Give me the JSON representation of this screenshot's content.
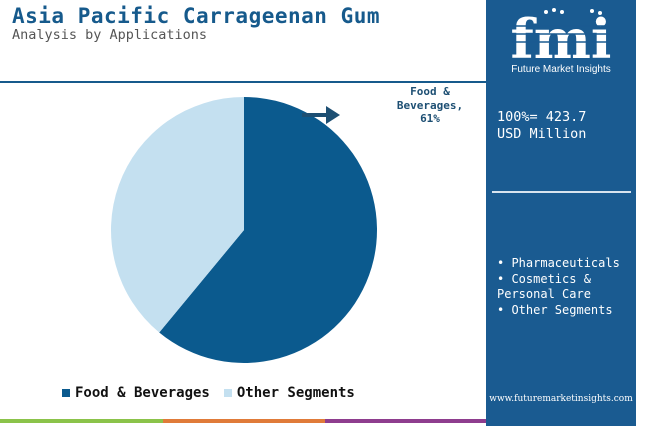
{
  "header": {
    "title": "Asia Pacific Carrageenan Gum",
    "subtitle": "Analysis by Applications"
  },
  "chart_data": {
    "type": "pie",
    "categories": [
      "Food & Beverages",
      "Other Segments"
    ],
    "values": [
      61,
      39
    ],
    "colors": [
      "#0b5a8e",
      "#c4e0f0"
    ],
    "callout": {
      "category": "Food & Beverages",
      "text": "Food & Beverages, 61%",
      "line1": "Food &",
      "line2": "Beverages,",
      "line3": "61%"
    },
    "legend": {
      "placement": "bottom",
      "items": [
        "Food & Beverages",
        "Other Segments"
      ]
    }
  },
  "panel": {
    "logo_letters": "fmi",
    "logo_name": "Future Market Insights",
    "total_line1": "100%= 423.7",
    "total_line2": "USD Million",
    "segments": [
      "Pharmaceuticals",
      "Cosmetics & Personal Care",
      "Other Segments"
    ],
    "website": "www.futuremarketinsights.com"
  },
  "colors": {
    "title": "#165a8c",
    "panel": "#1a5b91",
    "bottom_bar": [
      "#8bc34a",
      "#e07b39",
      "#8e3d8e"
    ]
  }
}
